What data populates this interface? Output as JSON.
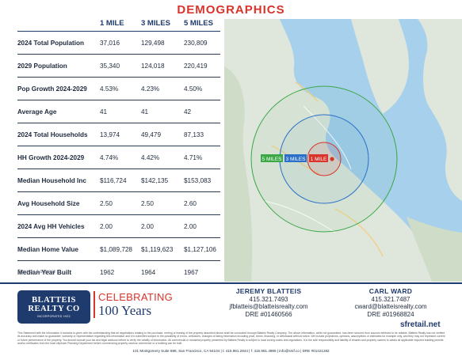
{
  "title": "DEMOGRAPHICS",
  "columns": [
    "",
    "1 MILE",
    "3 MILES",
    "5 MILES"
  ],
  "rows": [
    {
      "label": "2024 Total Population",
      "v1": "37,016",
      "v2": "129,498",
      "v3": "230,809"
    },
    {
      "label": "2029 Population",
      "v1": "35,340",
      "v2": "124,018",
      "v3": "220,419"
    },
    {
      "label": "Pop Growth 2024-2029",
      "v1": "4.53%",
      "v2": "4.23%",
      "v3": "4.50%"
    },
    {
      "label": "Average Age",
      "v1": "41",
      "v2": "41",
      "v3": "42"
    },
    {
      "label": "2024 Total Households",
      "v1": "13,974",
      "v2": "49,479",
      "v3": "87,133"
    },
    {
      "label": "HH Growth 2024-2029",
      "v1": "4.74%",
      "v2": "4.42%",
      "v3": "4.71%"
    },
    {
      "label": "Median Household Inc",
      "v1": "$116,724",
      "v2": "$142,135",
      "v3": "$153,083"
    },
    {
      "label": "Avg Household Size",
      "v1": "2.50",
      "v2": "2.50",
      "v3": "2.60"
    },
    {
      "label": "2024 Avg HH Vehicles",
      "v1": "2.00",
      "v2": "2.00",
      "v3": "2.00"
    },
    {
      "label": "Median Home Value",
      "v1": "$1,089,728",
      "v2": "$1,119,623",
      "v3": "$1,127,106"
    },
    {
      "label": "Median Year Built",
      "v1": "1962",
      "v2": "1964",
      "v3": "1967"
    }
  ],
  "source": "Source: Loopnet",
  "map": {
    "ring_labels": {
      "five": "5 MILES",
      "three": "3 MILES",
      "one": "1 MILE"
    },
    "colors": {
      "five": "#3aa845",
      "three": "#2a6fc9",
      "one": "#d9342b"
    }
  },
  "logo": {
    "line1": "BLATTEIS",
    "line2": "REALTY CO",
    "tagline": "INCORPORATED 1922"
  },
  "celebrating": {
    "line1": "CELEBRATING",
    "line2": "100 Years"
  },
  "agents": [
    {
      "name": "JEREMY BLATTEIS",
      "phone": "415.321.7493",
      "email": "jfblatteis@blatteisrealty.com",
      "dre": "DRE #01460566"
    },
    {
      "name": "CARL WARD",
      "phone": "415.321.7487",
      "email": "cward@blatteisrealty.com",
      "dre": "DRE #01968824"
    }
  ],
  "website": "sfretail.net",
  "disclaimer": "This Statement with the information it contains is given with the understanding that all negotiations relating to the purchase, renting or leasing of the property described above shall be conducted through Blatteis Realty Company. The above information, while not guaranteed, has been secured from sources believed to be reliable. Blatteis Realty has not verified its accuracy and make no guarantee, warranty or representation regarding this information and it is submitted subject to the possibility of errors, omissions, changes of listing information including price, terms, financing, or withdrawal without notice. We include projections, opinions, assumptions or estimates for example only, and they may not represent current or future performance of the property. You should consult your tax and legal advisors before to verify the validity of information. All commercial or industrial property presented by Blatteis Realty is subject to local zoning codes and regulations. It is the sole responsibility and liability of tenants and property owners to obtain all applicable required building permits and/or certificates from the local city/town Planning Department before commencing property use/use commence or a building can be built.",
  "address": "101 Montgomery Suite 888, San Francisco, CA 94104  |  t: 415.981.2844  |  f: 415.981.4986  |  info@srsf.co  |  DRE #01421282"
}
